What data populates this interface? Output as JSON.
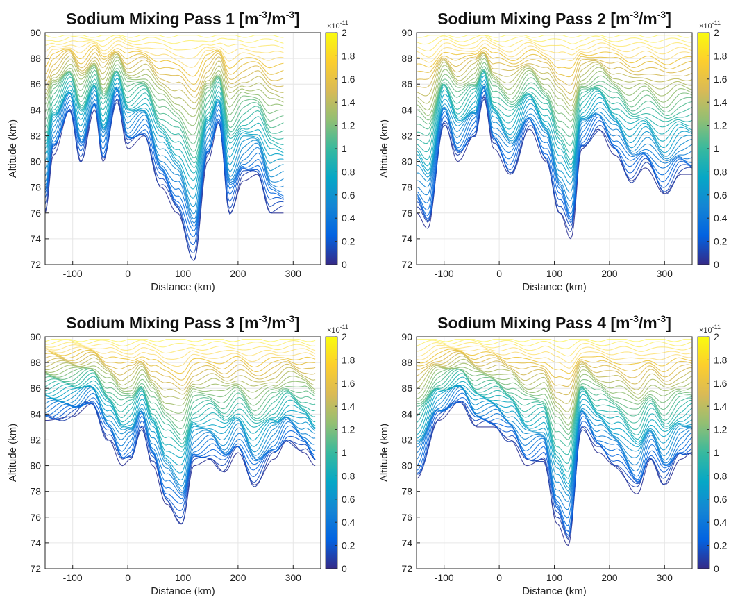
{
  "chart_data": [
    {
      "type": "contour",
      "title_main": "Sodium Mixing Pass 1 [m",
      "title_exp1": "-3",
      "title_mid": "/m",
      "title_exp2": "-3",
      "title_end": "]",
      "xlabel": "Distance (km)",
      "ylabel": "Altitude (km)",
      "xlim": [
        -150,
        350
      ],
      "ylim": [
        72,
        90
      ],
      "xticks": [
        "-100",
        "0",
        "100",
        "200",
        "300"
      ],
      "xtick_values": [
        -100,
        0,
        100,
        200,
        300
      ],
      "yticks": [
        "72",
        "74",
        "76",
        "78",
        "80",
        "82",
        "84",
        "86",
        "88",
        "90"
      ],
      "data_xmax": 283,
      "grid": true,
      "colorbar": {
        "min": 0,
        "max": 2,
        "exponent": "×10",
        "exponent_power": "-11",
        "ticks": [
          "0",
          "0.2",
          "0.4",
          "0.6",
          "0.8",
          "1",
          "1.2",
          "1.4",
          "1.6",
          "1.8",
          "2"
        ]
      },
      "base_profile": [
        [
          -150,
          76
        ],
        [
          -135,
          80.5
        ],
        [
          -105,
          84
        ],
        [
          -85,
          80
        ],
        [
          -60,
          84
        ],
        [
          -45,
          80
        ],
        [
          -20,
          84.8
        ],
        [
          0,
          81
        ],
        [
          30,
          82
        ],
        [
          60,
          78
        ],
        [
          90,
          76
        ],
        [
          120,
          72.3
        ],
        [
          145,
          80
        ],
        [
          165,
          83
        ],
        [
          185,
          76
        ],
        [
          210,
          78.5
        ],
        [
          235,
          79
        ],
        [
          260,
          76
        ],
        [
          283,
          76
        ]
      ]
    },
    {
      "type": "contour",
      "title_main": "Sodium Mixing Pass 2 [m",
      "title_exp1": "-3",
      "title_mid": "/m",
      "title_exp2": "-3",
      "title_end": "]",
      "xlabel": "Distance (km)",
      "ylabel": "Altitude (km)",
      "xlim": [
        -150,
        350
      ],
      "ylim": [
        72,
        90
      ],
      "xticks": [
        "-100",
        "0",
        "100",
        "200",
        "300"
      ],
      "xtick_values": [
        -100,
        0,
        100,
        200,
        300
      ],
      "yticks": [
        "72",
        "74",
        "76",
        "78",
        "80",
        "82",
        "84",
        "86",
        "88",
        "90"
      ],
      "data_xmax": 350,
      "grid": true,
      "colorbar": {
        "min": 0,
        "max": 2,
        "exponent": "×10",
        "exponent_power": "-11",
        "ticks": [
          "0",
          "0.2",
          "0.4",
          "0.6",
          "0.8",
          "1",
          "1.2",
          "1.4",
          "1.6",
          "1.8",
          "2"
        ]
      },
      "base_profile": [
        [
          -150,
          76
        ],
        [
          -130,
          74.8
        ],
        [
          -100,
          83
        ],
        [
          -75,
          80
        ],
        [
          -45,
          82
        ],
        [
          -28,
          85
        ],
        [
          -10,
          81
        ],
        [
          20,
          79
        ],
        [
          55,
          82.5
        ],
        [
          85,
          80
        ],
        [
          110,
          76
        ],
        [
          130,
          74
        ],
        [
          150,
          81
        ],
        [
          180,
          82.5
        ],
        [
          210,
          80.5
        ],
        [
          240,
          78.5
        ],
        [
          265,
          79.5
        ],
        [
          300,
          77.5
        ],
        [
          330,
          79
        ],
        [
          350,
          79
        ]
      ]
    },
    {
      "type": "contour",
      "title_main": "Sodium Mixing Pass 3 [m",
      "title_exp1": "-3",
      "title_mid": "/m",
      "title_exp2": "-3",
      "title_end": "]",
      "xlabel": "Distance (km)",
      "ylabel": "Altitude (km)",
      "xlim": [
        -150,
        350
      ],
      "ylim": [
        72,
        90
      ],
      "xticks": [
        "-100",
        "0",
        "100",
        "200",
        "300"
      ],
      "xtick_values": [
        -100,
        0,
        100,
        200,
        300
      ],
      "yticks": [
        "72",
        "74",
        "76",
        "78",
        "80",
        "82",
        "84",
        "86",
        "88",
        "90"
      ],
      "data_xmax": 340,
      "grid": true,
      "colorbar": {
        "min": 0,
        "max": 2,
        "exponent": "×10",
        "exponent_power": "-11",
        "ticks": [
          "0",
          "0.2",
          "0.4",
          "0.6",
          "0.8",
          "1",
          "1.2",
          "1.4",
          "1.6",
          "1.8",
          "2"
        ]
      },
      "base_profile": [
        [
          -150,
          83.5
        ],
        [
          -100,
          83.8
        ],
        [
          -65,
          84.8
        ],
        [
          -35,
          82
        ],
        [
          -10,
          80
        ],
        [
          5,
          80.5
        ],
        [
          25,
          83
        ],
        [
          45,
          80
        ],
        [
          70,
          77
        ],
        [
          98,
          75.5
        ],
        [
          120,
          80
        ],
        [
          150,
          80.5
        ],
        [
          175,
          79.5
        ],
        [
          200,
          81
        ],
        [
          230,
          78.5
        ],
        [
          265,
          80.5
        ],
        [
          290,
          82
        ],
        [
          320,
          81
        ],
        [
          340,
          80
        ]
      ]
    },
    {
      "type": "contour",
      "title_main": "Sodium Mixing Pass 4 [m",
      "title_exp1": "-3",
      "title_mid": "/m",
      "title_exp2": "-3",
      "title_end": "]",
      "xlabel": "Distance (km)",
      "ylabel": "Altitude (km)",
      "xlim": [
        -150,
        350
      ],
      "ylim": [
        72,
        90
      ],
      "xticks": [
        "-100",
        "0",
        "100",
        "200",
        "300"
      ],
      "xtick_values": [
        -100,
        0,
        100,
        200,
        300
      ],
      "yticks": [
        "72",
        "74",
        "76",
        "78",
        "80",
        "82",
        "84",
        "86",
        "88",
        "90"
      ],
      "data_xmax": 350,
      "grid": true,
      "colorbar": {
        "min": 0,
        "max": 2,
        "exponent": "×10",
        "exponent_power": "-11",
        "ticks": [
          "0",
          "0.2",
          "0.4",
          "0.6",
          "0.8",
          "1",
          "1.2",
          "1.4",
          "1.6",
          "1.8",
          "2"
        ]
      },
      "base_profile": [
        [
          -150,
          79
        ],
        [
          -110,
          83.5
        ],
        [
          -70,
          85
        ],
        [
          -40,
          83
        ],
        [
          -10,
          83
        ],
        [
          20,
          82
        ],
        [
          50,
          80
        ],
        [
          80,
          80.5
        ],
        [
          105,
          75.5
        ],
        [
          125,
          73.8
        ],
        [
          150,
          83
        ],
        [
          180,
          81
        ],
        [
          210,
          80
        ],
        [
          250,
          77.8
        ],
        [
          275,
          80.5
        ],
        [
          300,
          78.5
        ],
        [
          330,
          80.5
        ],
        [
          350,
          81
        ]
      ]
    }
  ],
  "colors": {
    "parula": [
      "#352a87",
      "#0363e1",
      "#1485d4",
      "#06a7c6",
      "#38b99e",
      "#92bf73",
      "#d9ba56",
      "#fcce2e",
      "#f9fb0e"
    ],
    "grid": "#e6e6e6",
    "axis": "#262626"
  }
}
